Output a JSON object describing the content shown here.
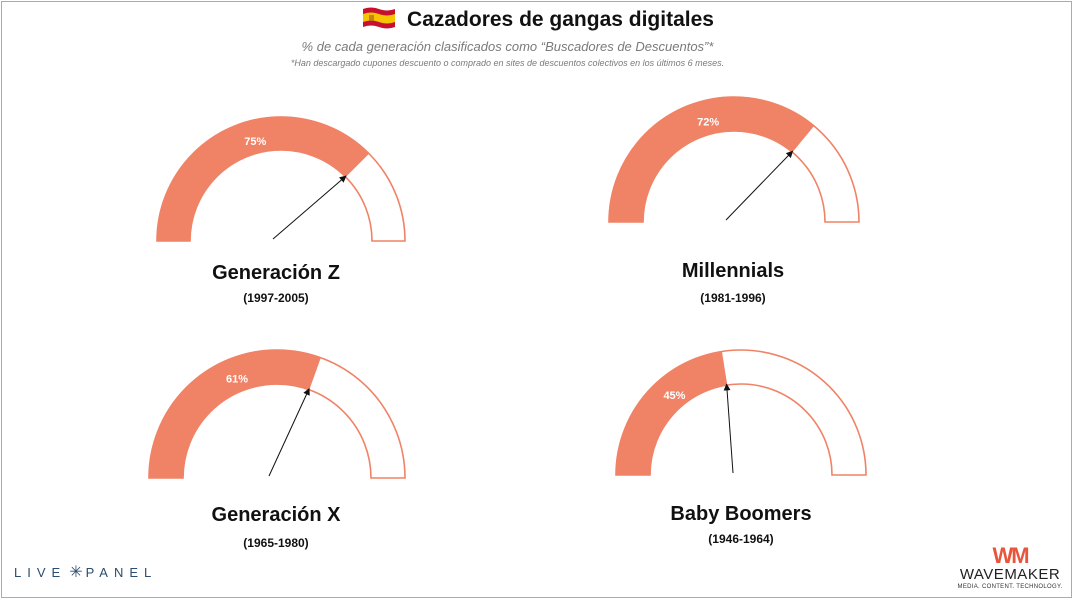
{
  "header": {
    "title": "Cazadores de gangas digitales",
    "subtitle": "% de cada generación clasificados como “Buscadores de Descuentos”*",
    "footnote": "*Han descargado cupones descuento o comprado en sites de descuentos colectivos en los últimos 6 meses."
  },
  "colors": {
    "fill": "#f08266",
    "frame": "#e8a23a",
    "text": "#111111"
  },
  "chart_data": [
    {
      "type": "gauge",
      "name": "Generación Z",
      "years": "(1997-2005)",
      "value": 75,
      "label": "75%",
      "range": [
        0,
        100
      ]
    },
    {
      "type": "gauge",
      "name": "Millennials",
      "years": "(1981-1996)",
      "value": 72,
      "label": "72%",
      "range": [
        0,
        100
      ]
    },
    {
      "type": "gauge",
      "name": "Generación X",
      "years": "(1965-1980)",
      "value": 61,
      "label": "61%",
      "range": [
        0,
        100
      ]
    },
    {
      "type": "gauge",
      "name": "Baby Boomers",
      "years": "(1946-1964)",
      "value": 45,
      "label": "45%",
      "range": [
        0,
        100
      ]
    }
  ],
  "logos": {
    "livepanel": {
      "left": "LIVE",
      "right": "PANEL",
      "icon": "star-icon"
    },
    "wavemaker": {
      "mark": "WM",
      "name": "WAVEMAKER",
      "tagline": "MEDIA. CONTENT. TECHNOLOGY."
    }
  }
}
